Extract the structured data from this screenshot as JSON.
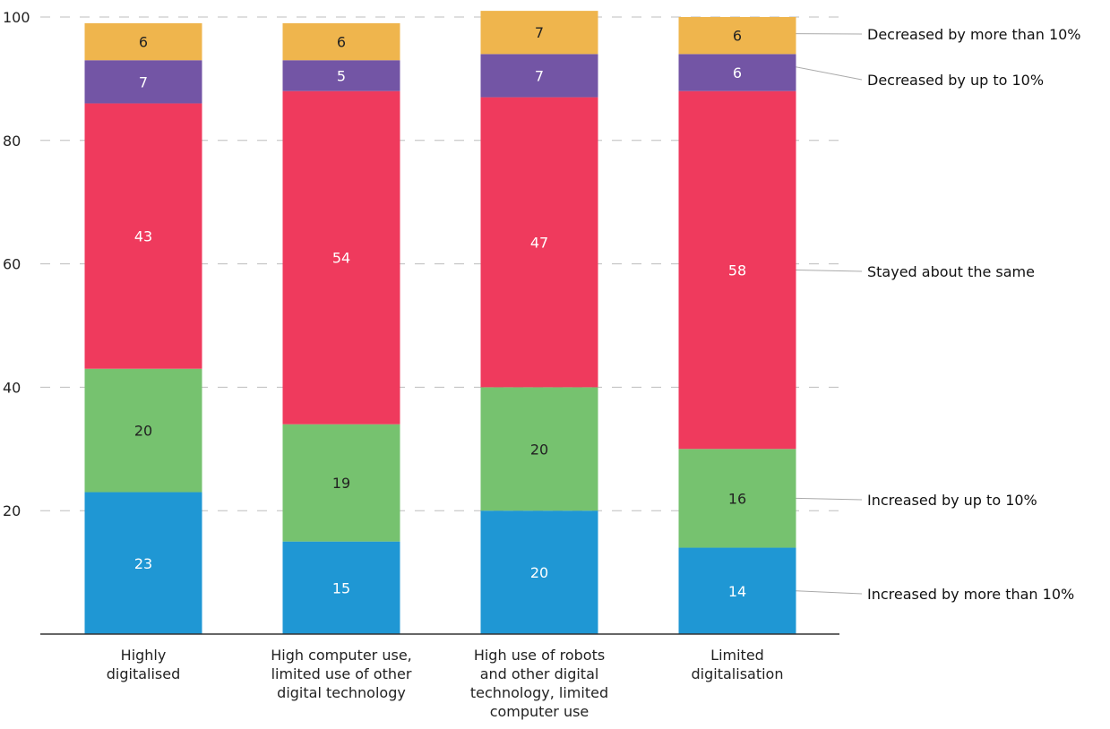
{
  "chart_data": {
    "type": "bar",
    "stacked": true,
    "title": "",
    "xlabel": "",
    "ylabel": "",
    "ylim": [
      0,
      100
    ],
    "yticks": [
      20,
      40,
      60,
      80,
      100
    ],
    "grid": "horizontal dashed",
    "legend_position": "right, labels linked to segments of last bar",
    "categories": [
      [
        "Highly",
        "digitalised"
      ],
      [
        "High computer use,",
        "limited use of other",
        "digital technology"
      ],
      [
        "High use of robots",
        "and other digital",
        "technology, limited",
        "computer use"
      ],
      [
        "Limited",
        "digitalisation"
      ]
    ],
    "series": [
      {
        "name": "Increased by more than 10%",
        "color": "#1f97d4",
        "label_color": "#ffffff",
        "values": [
          23,
          15,
          20,
          14
        ]
      },
      {
        "name": "Increased by up to 10%",
        "color": "#76c26f",
        "label_color": "#222222",
        "values": [
          20,
          19,
          20,
          16
        ]
      },
      {
        "name": "Stayed about the same",
        "color": "#ef3a5d",
        "label_color": "#ffffff",
        "values": [
          43,
          54,
          47,
          58
        ]
      },
      {
        "name": "Decreased by up to 10%",
        "color": "#7355a5",
        "label_color": "#ffffff",
        "values": [
          7,
          5,
          7,
          6
        ]
      },
      {
        "name": "Decreased by more than 10%",
        "color": "#efb54d",
        "label_color": "#222222",
        "values": [
          6,
          6,
          7,
          6
        ]
      }
    ]
  }
}
